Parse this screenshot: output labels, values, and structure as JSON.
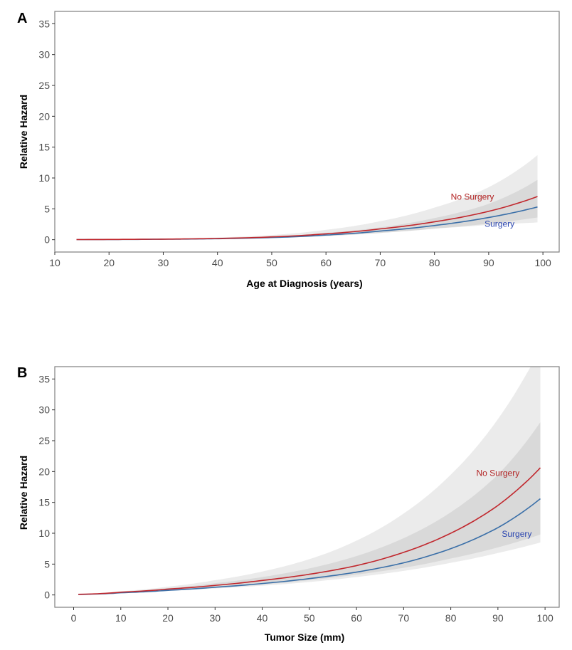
{
  "chart_data": [
    {
      "type": "line",
      "panel": "A",
      "title": "",
      "xlabel": "Age at Diagnosis (years)",
      "ylabel": "Relative Hazard",
      "xlim": [
        10,
        103
      ],
      "ylim": [
        -2,
        37
      ],
      "xticks": [
        10,
        20,
        30,
        40,
        50,
        60,
        70,
        80,
        90,
        100
      ],
      "yticks": [
        0,
        5,
        10,
        15,
        20,
        25,
        30,
        35
      ],
      "grid": false,
      "legend": "inline labels near curve ends",
      "x": [
        14,
        20,
        30,
        40,
        50,
        60,
        70,
        80,
        90,
        99
      ],
      "series": [
        {
          "name": "No Surgery",
          "color": "#c1272d",
          "label_color": "#b22222",
          "values": [
            0.02,
            0.04,
            0.09,
            0.2,
            0.45,
            0.95,
            1.75,
            2.9,
            4.6,
            7.0
          ],
          "ci_outer": {
            "lower": [
              0.01,
              0.02,
              0.05,
              0.12,
              0.3,
              0.65,
              1.2,
              1.8,
              2.4,
              2.8
            ],
            "upper": [
              0.05,
              0.08,
              0.16,
              0.35,
              0.75,
              1.6,
              3.0,
              5.2,
              8.5,
              13.7
            ]
          }
        },
        {
          "name": "Surgery",
          "color": "#3a6fa8",
          "label_color": "#2a45b0",
          "values": [
            0.02,
            0.03,
            0.07,
            0.16,
            0.35,
            0.75,
            1.4,
            2.3,
            3.6,
            5.3
          ],
          "ci_inner": {
            "lower": [
              0.01,
              0.02,
              0.05,
              0.12,
              0.28,
              0.6,
              1.1,
              1.8,
              2.6,
              3.6
            ],
            "upper": [
              0.03,
              0.05,
              0.1,
              0.22,
              0.5,
              1.1,
              2.0,
              3.5,
              5.8,
              9.7
            ]
          }
        }
      ],
      "annotations": [
        {
          "text": "No Surgery",
          "x": 87,
          "y": 6.5
        },
        {
          "text": "Surgery",
          "x": 92,
          "y": 2.1
        }
      ]
    },
    {
      "type": "line",
      "panel": "B",
      "title": "",
      "xlabel": "Tumor Size (mm)",
      "ylabel": "Relative Hazard",
      "xlim": [
        -4,
        103
      ],
      "ylim": [
        -2,
        37
      ],
      "xticks": [
        0,
        10,
        20,
        30,
        40,
        50,
        60,
        70,
        80,
        90,
        100
      ],
      "yticks": [
        0,
        5,
        10,
        15,
        20,
        25,
        30,
        35
      ],
      "grid": false,
      "legend": "inline labels near curve ends",
      "x": [
        1,
        10,
        20,
        30,
        40,
        50,
        60,
        70,
        80,
        90,
        99
      ],
      "series": [
        {
          "name": "No Surgery",
          "color": "#c1272d",
          "label_color": "#b22222",
          "values": [
            0.1,
            0.45,
            0.95,
            1.55,
            2.35,
            3.35,
            4.75,
            6.9,
            10.0,
            14.5,
            20.6
          ],
          "ci_outer": {
            "lower": [
              0.08,
              0.35,
              0.7,
              1.05,
              1.5,
              2.1,
              2.9,
              3.9,
              5.2,
              6.8,
              8.5
            ],
            "upper": [
              0.15,
              0.6,
              1.35,
              2.4,
              3.8,
              5.8,
              8.8,
              13.2,
              19.5,
              28.5,
              40.0
            ]
          }
        },
        {
          "name": "Surgery",
          "color": "#3a6fa8",
          "label_color": "#2a45b0",
          "values": [
            0.08,
            0.35,
            0.75,
            1.25,
            1.85,
            2.65,
            3.7,
            5.2,
            7.5,
            10.9,
            15.6
          ],
          "ci_inner": {
            "lower": [
              0.08,
              0.35,
              0.72,
              1.15,
              1.7,
              2.4,
              3.3,
              4.4,
              5.9,
              7.7,
              9.8
            ],
            "upper": [
              0.12,
              0.5,
              1.1,
              1.9,
              2.9,
              4.3,
              6.3,
              9.2,
              13.4,
              19.5,
              28.0
            ]
          }
        }
      ],
      "annotations": [
        {
          "text": "No Surgery",
          "x": 90,
          "y": 19.3
        },
        {
          "text": "Surgery",
          "x": 94,
          "y": 9.4
        }
      ]
    }
  ],
  "panels": [
    {
      "letter": "A",
      "xlabel": "Age at Diagnosis (years)",
      "ylabel": "Relative Hazard",
      "xtick_labels": [
        "10",
        "20",
        "30",
        "40",
        "50",
        "60",
        "70",
        "80",
        "90",
        "100"
      ],
      "ytick_labels": [
        "0",
        "5",
        "10",
        "15",
        "20",
        "25",
        "30",
        "35"
      ],
      "label_no_surgery": "No Surgery",
      "label_surgery": "Surgery"
    },
    {
      "letter": "B",
      "xlabel": "Tumor Size (mm)",
      "ylabel": "Relative Hazard",
      "xtick_labels": [
        "0",
        "10",
        "20",
        "30",
        "40",
        "50",
        "60",
        "70",
        "80",
        "90",
        "100"
      ],
      "ytick_labels": [
        "0",
        "5",
        "10",
        "15",
        "20",
        "25",
        "30",
        "35"
      ],
      "label_no_surgery": "No Surgery",
      "label_surgery": "Surgery"
    }
  ],
  "colors": {
    "band_outer": "#ebebeb",
    "band_inner": "#d9d9d9",
    "axis": "#7f7f7f"
  }
}
